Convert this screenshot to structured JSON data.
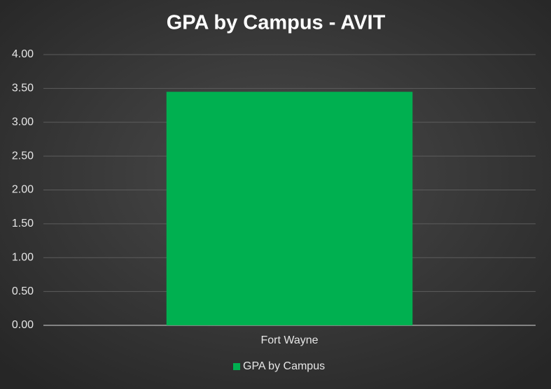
{
  "chart_data": {
    "type": "bar",
    "title": "GPA by Campus  - AVIT",
    "categories": [
      "Fort Wayne"
    ],
    "series": [
      {
        "name": "GPA by Campus",
        "color": "#00b050",
        "values": [
          3.45
        ]
      }
    ],
    "ylim": [
      0,
      4
    ],
    "yticks": [
      {
        "value": 0,
        "label": "0.00"
      },
      {
        "value": 0.5,
        "label": "0.50"
      },
      {
        "value": 1,
        "label": "1.00"
      },
      {
        "value": 1.5,
        "label": "1.50"
      },
      {
        "value": 2,
        "label": "2.00"
      },
      {
        "value": 2.5,
        "label": "2.50"
      },
      {
        "value": 3,
        "label": "3.00"
      },
      {
        "value": 3.5,
        "label": "3.50"
      },
      {
        "value": 4,
        "label": "4.00"
      }
    ],
    "grid": true,
    "legend": "bottom"
  }
}
